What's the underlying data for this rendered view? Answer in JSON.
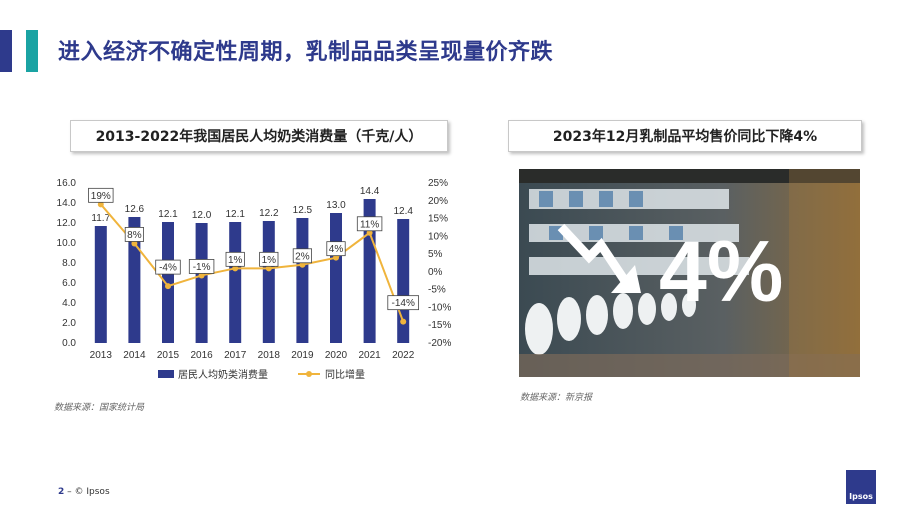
{
  "header": {
    "title": "进入经济不确定性周期，乳制品品类呈现量价齐跌"
  },
  "left_panel": {
    "box_title": "2013-2022年我国居民人均奶类消费量（千克/人）",
    "source": "数据来源：国家统计局"
  },
  "right_panel": {
    "box_title": "2023年12月乳制品平均售价同比下降4%",
    "big_number": "4%",
    "source": "数据来源：新京报"
  },
  "chart_data": {
    "type": "bar",
    "categories": [
      "2013",
      "2014",
      "2015",
      "2016",
      "2017",
      "2018",
      "2019",
      "2020",
      "2021",
      "2022"
    ],
    "series": [
      {
        "name": "居民人均奶类消费量",
        "type": "bar",
        "axis": "left",
        "color": "#2e3a8c",
        "values": [
          11.7,
          12.6,
          12.1,
          12.0,
          12.1,
          12.2,
          12.5,
          13.0,
          14.4,
          12.4
        ],
        "labels": [
          "11.7",
          "12.6",
          "12.1",
          "12.0",
          "12.1",
          "12.2",
          "12.5",
          "13.0",
          "14.4",
          "12.4"
        ]
      },
      {
        "name": "同比增量",
        "type": "line",
        "axis": "right",
        "color": "#f0b43c",
        "values": [
          19,
          8,
          -4,
          -1,
          1,
          1,
          2,
          4,
          11,
          -14
        ],
        "labels": [
          "19%",
          "8%",
          "-4%",
          "-1%",
          "1%",
          "1%",
          "2%",
          "4%",
          "11%",
          "-14%"
        ]
      }
    ],
    "y_left": {
      "min": 0,
      "max": 16,
      "ticks": [
        "0.0",
        "2.0",
        "4.0",
        "6.0",
        "8.0",
        "10.0",
        "12.0",
        "14.0",
        "16.0"
      ]
    },
    "y_right": {
      "min": -20,
      "max": 25,
      "ticks": [
        "-20%",
        "-15%",
        "-10%",
        "-5%",
        "0%",
        "5%",
        "10%",
        "15%",
        "20%",
        "25%"
      ]
    },
    "legend_position": "bottom",
    "grid": false
  },
  "footer": {
    "page": "2",
    "copyright": "© Ipsos",
    "logo_text": "Ipsos"
  }
}
